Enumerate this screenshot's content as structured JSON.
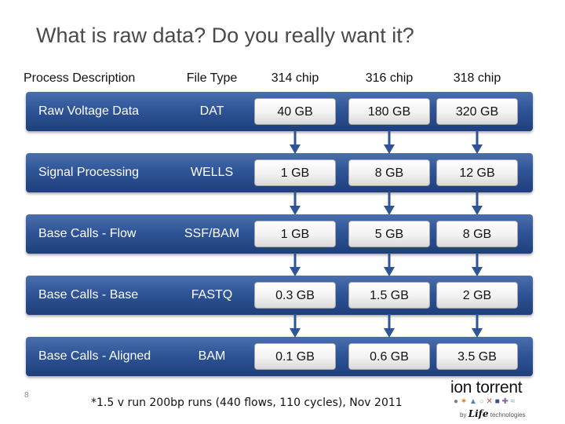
{
  "title": "What is raw data?  Do you really want it?",
  "headers": {
    "process": "Process Description",
    "file_type": "File Type",
    "chip_314": "314 chip",
    "chip_316": "316 chip",
    "chip_318": "318 chip"
  },
  "rows": [
    {
      "process": "Raw Voltage Data",
      "file_type": "DAT",
      "chip_314": "40 GB",
      "chip_316": "180 GB",
      "chip_318": "320 GB"
    },
    {
      "process": "Signal Processing",
      "file_type": "WELLS",
      "chip_314": "1 GB",
      "chip_316": "8 GB",
      "chip_318": "12 GB"
    },
    {
      "process": "Base Calls - Flow",
      "file_type": "SSF/BAM",
      "chip_314": "1 GB",
      "chip_316": "5 GB",
      "chip_318": "8 GB"
    },
    {
      "process": "Base Calls - Base",
      "file_type": "FASTQ",
      "chip_314": "0.3 GB",
      "chip_316": "1.5 GB",
      "chip_318": "2 GB"
    },
    {
      "process": "Base Calls - Aligned",
      "file_type": "BAM",
      "chip_314": "0.1 GB",
      "chip_316": "0.6 GB",
      "chip_318": "3.5 GB"
    }
  ],
  "footnote": "*1.5 v run 200bp runs (440 flows, 110 cycles), Nov 2011",
  "slide_number": "8",
  "logo": {
    "wordmark": "ion torrent",
    "byline_prefix": "by",
    "byline_brand": "Life",
    "byline_suffix": "technologies"
  },
  "colors": {
    "row_bar": "#2f5597",
    "arrow": "#2f5597",
    "cell_bg": "#f2f2f2"
  }
}
